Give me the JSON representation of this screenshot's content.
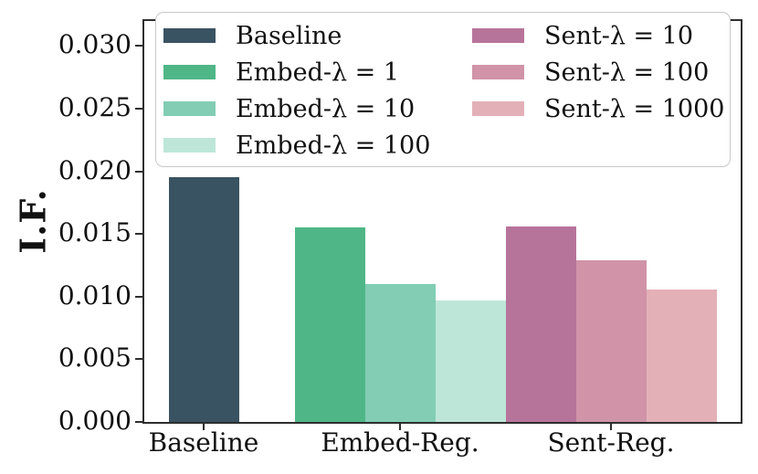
{
  "figure": {
    "background": "#ffffff",
    "axis_color": "#2e2e2e"
  },
  "chart_data": {
    "type": "bar",
    "title": "",
    "xlabel": "",
    "ylabel": "I.F.",
    "categories": [
      "Baseline",
      "Embed-Reg.",
      "Sent-Reg."
    ],
    "ytick_labels": [
      "0.000",
      "0.005",
      "0.010",
      "0.015",
      "0.020",
      "0.025",
      "0.030"
    ],
    "ylim": [
      0,
      0.032
    ],
    "grid": false,
    "legend": {
      "position": "upper center",
      "columns": 2,
      "column_split": [
        4,
        3
      ]
    },
    "series": [
      {
        "name": "Baseline",
        "category": "Baseline",
        "value": 0.0195,
        "color": "#3a5362"
      },
      {
        "name": "Embed-λ = 1",
        "category": "Embed-Reg.",
        "value": 0.0155,
        "color": "#4fb687"
      },
      {
        "name": "Embed-λ = 10",
        "category": "Embed-Reg.",
        "value": 0.011,
        "color": "#82cdb4"
      },
      {
        "name": "Embed-λ = 100",
        "category": "Embed-Reg.",
        "value": 0.0097,
        "color": "#bde6d9"
      },
      {
        "name": "Sent-λ = 10",
        "category": "Sent-Reg.",
        "value": 0.0156,
        "color": "#b7749a"
      },
      {
        "name": "Sent-λ = 100",
        "category": "Sent-Reg.",
        "value": 0.0129,
        "color": "#d093a8"
      },
      {
        "name": "Sent-λ = 1000",
        "category": "Sent-Reg.",
        "value": 0.0106,
        "color": "#e3b0b7"
      }
    ]
  }
}
